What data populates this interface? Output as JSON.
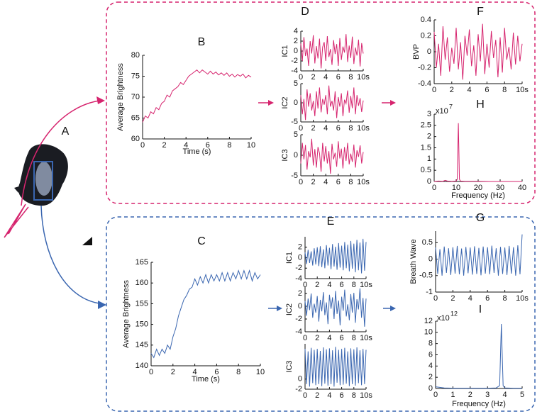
{
  "image_panel": {
    "label": "A"
  },
  "chart_data": [
    {
      "type": "line",
      "title": "B",
      "ylabel": "Average Brightness",
      "xlabel": "Time (s)",
      "color": "#d6246e",
      "xlim": [
        0,
        10
      ],
      "xticks": [
        0,
        2,
        4,
        6,
        8,
        10
      ],
      "ylim": [
        60,
        80
      ],
      "yticks": [
        60,
        65,
        70,
        75,
        80
      ],
      "x": [
        0,
        0.25,
        0.5,
        0.75,
        1,
        1.25,
        1.5,
        1.75,
        2,
        2.25,
        2.5,
        2.75,
        3,
        3.25,
        3.5,
        3.75,
        4,
        4.25,
        4.5,
        4.75,
        5,
        5.25,
        5.5,
        5.75,
        6,
        6.25,
        6.5,
        6.75,
        7,
        7.25,
        7.5,
        7.75,
        8,
        8.25,
        8.5,
        8.75,
        9,
        9.25,
        9.5,
        9.75,
        10
      ],
      "values": [
        64,
        65.5,
        65,
        66.5,
        66,
        67.5,
        67,
        68.5,
        69,
        70.5,
        70,
        71.5,
        72,
        72.5,
        73.5,
        73,
        74,
        75,
        75.5,
        76,
        76.5,
        75.8,
        76.5,
        76,
        75.5,
        76.2,
        75.5,
        76,
        75.3,
        75.8,
        75.2,
        75.8,
        75,
        75.5,
        74.8,
        75.4,
        75,
        75.5,
        74.6,
        75.2,
        74.8
      ]
    },
    {
      "type": "line",
      "title": "D",
      "ylabel": "IC1",
      "color": "#d6246e",
      "xlim": [
        0,
        10
      ],
      "xticks": [
        0,
        2,
        4,
        6,
        8,
        {
          "value": 10,
          "label": "10s"
        }
      ],
      "ylim": [
        -4,
        4
      ],
      "yticks": [
        -4,
        -2,
        0,
        2,
        4
      ],
      "x": [
        0,
        0.25,
        0.5,
        0.75,
        1,
        1.25,
        1.5,
        1.75,
        2,
        2.25,
        2.5,
        2.75,
        3,
        3.25,
        3.5,
        3.75,
        4,
        4.25,
        4.5,
        4.75,
        5,
        5.25,
        5.5,
        5.75,
        6,
        6.25,
        6.5,
        6.75,
        7,
        7.25,
        7.5,
        7.75,
        8,
        8.25,
        8.5,
        8.75,
        9,
        9.25,
        9.5,
        9.75,
        10
      ],
      "values": [
        1.5,
        -2,
        2.8,
        -1,
        0.5,
        -3,
        2,
        -0.5,
        3.2,
        -2.5,
        1,
        -1.5,
        2.5,
        -3.5,
        0.8,
        1.8,
        -2,
        3,
        -1.2,
        0.4,
        -2.8,
        2.2,
        -0.6,
        1.4,
        -3,
        2.6,
        -1.8,
        0.9,
        -0.3,
        3.4,
        -2.2,
        1.1,
        -1.4,
        2.9,
        -2.6,
        0.7,
        -0.9,
        2.3,
        -3.1,
        1.6,
        -0.5
      ]
    },
    {
      "type": "line",
      "ylabel": "IC2",
      "color": "#d6246e",
      "xlim": [
        0,
        10
      ],
      "xticks": [
        0,
        2,
        4,
        6,
        8,
        {
          "value": 10,
          "label": "10s"
        }
      ],
      "ylim": [
        -5,
        5
      ],
      "yticks": [
        -5,
        0,
        5
      ],
      "x": [
        0,
        0.25,
        0.5,
        0.75,
        1,
        1.25,
        1.5,
        1.75,
        2,
        2.25,
        2.5,
        2.75,
        3,
        3.25,
        3.5,
        3.75,
        4,
        4.25,
        4.5,
        4.75,
        5,
        5.25,
        5.5,
        5.75,
        6,
        6.25,
        6.5,
        6.75,
        7,
        7.25,
        7.5,
        7.75,
        8,
        8.25,
        8.5,
        8.75,
        9,
        9.25,
        9.5,
        9.75,
        10
      ],
      "values": [
        2,
        -3,
        1,
        -4.5,
        3.5,
        -1,
        2.5,
        -2,
        0.5,
        -3.5,
        3,
        -1.5,
        4,
        -2.5,
        1,
        -0.5,
        2,
        -3,
        4.5,
        -1,
        0.5,
        -2,
        3,
        -4,
        1.5,
        -1,
        2.5,
        -3.5,
        0.8,
        -0.2,
        3.2,
        -2.6,
        1.8,
        -1.4,
        4,
        -3,
        2,
        -0.8,
        1.2,
        -2.4,
        0.6
      ]
    },
    {
      "type": "line",
      "ylabel": "IC3",
      "color": "#d6246e",
      "xlim": [
        0,
        10
      ],
      "xticks": [
        0,
        2,
        4,
        6,
        8,
        {
          "value": 10,
          "label": "10s"
        }
      ],
      "ylim": [
        -5,
        5
      ],
      "yticks": [
        -5,
        0,
        5
      ],
      "x": [
        0,
        0.25,
        0.5,
        0.75,
        1,
        1.25,
        1.5,
        1.75,
        2,
        2.25,
        2.5,
        2.75,
        3,
        3.25,
        3.5,
        3.75,
        4,
        4.25,
        4.5,
        4.75,
        5,
        5.25,
        5.5,
        5.75,
        6,
        6.25,
        6.5,
        6.75,
        7,
        7.25,
        7.5,
        7.75,
        8,
        8.25,
        8.5,
        8.75,
        9,
        9.25,
        9.5,
        9.75,
        10
      ],
      "values": [
        -2,
        3,
        -1,
        2.5,
        -3.5,
        1,
        -0.5,
        4,
        -2.5,
        1.5,
        -3,
        2,
        0.5,
        -4,
        3,
        -1.5,
        2.2,
        -2,
        1,
        -4.5,
        2.8,
        -1,
        0.6,
        -2.8,
        3.4,
        -0.8,
        1.6,
        -3.2,
        2,
        -1.4,
        3,
        -2.2,
        0.4,
        -1.6,
        2.6,
        -3,
        1.2,
        -0.4,
        2.4,
        -2,
        0.8
      ]
    },
    {
      "type": "line",
      "title": "F",
      "ylabel": "BVP",
      "color": "#d6246e",
      "xlim": [
        0,
        10
      ],
      "xticks": [
        0,
        2,
        4,
        6,
        8,
        {
          "value": 10,
          "label": "10s"
        }
      ],
      "ylim": [
        -0.4,
        0.4
      ],
      "yticks": [
        -0.4,
        -0.2,
        0,
        0.2,
        0.4
      ],
      "x": [
        0,
        0.25,
        0.5,
        0.75,
        1,
        1.25,
        1.5,
        1.75,
        2,
        2.25,
        2.5,
        2.75,
        3,
        3.25,
        3.5,
        3.75,
        4,
        4.25,
        4.5,
        4.75,
        5,
        5.25,
        5.5,
        5.75,
        6,
        6.25,
        6.5,
        6.75,
        7,
        7.25,
        7.5,
        7.75,
        8,
        8.25,
        8.5,
        8.75,
        9,
        9.25,
        9.5,
        9.75,
        10
      ],
      "values": [
        0.25,
        -0.2,
        0.1,
        -0.3,
        0.32,
        -0.1,
        0.18,
        -0.25,
        0.05,
        -0.15,
        0.3,
        -0.22,
        0.12,
        -0.35,
        0.2,
        -0.05,
        0.28,
        -0.18,
        0.08,
        -0.3,
        0.22,
        -0.12,
        0.35,
        -0.28,
        0.1,
        -0.2,
        0.26,
        -0.08,
        0.15,
        -0.32,
        0.18,
        -0.26,
        0.3,
        -0.1,
        0.06,
        -0.22,
        0.24,
        -0.16,
        0.2,
        -0.12,
        0.1
      ]
    },
    {
      "type": "line",
      "title": "H",
      "xlabel": "Frequency (Hz)",
      "scale_label": "x10",
      "scale_exponent": "7",
      "color": "#d6246e",
      "xlim": [
        0,
        40
      ],
      "xticks": [
        0,
        10,
        20,
        30,
        40
      ],
      "ylim": [
        0,
        3
      ],
      "yticks": [
        0,
        0.5,
        1,
        1.5,
        2,
        2.5,
        3
      ],
      "x": [
        0,
        2,
        4,
        5,
        6,
        8,
        10,
        10.5,
        11,
        11.5,
        12,
        14,
        16,
        20,
        25,
        30,
        35,
        40
      ],
      "values": [
        0,
        0.02,
        0.01,
        0.05,
        0.02,
        0.01,
        0.02,
        0.1,
        2.6,
        0.1,
        0.02,
        0.01,
        0.01,
        0.01,
        0,
        0,
        0,
        0
      ]
    },
    {
      "type": "line",
      "title": "C",
      "ylabel": "Average Brightness",
      "xlabel": "Time (s)",
      "color": "#3a66b0",
      "xlim": [
        0,
        10
      ],
      "xticks": [
        0,
        2,
        4,
        6,
        8,
        10
      ],
      "ylim": [
        140,
        165
      ],
      "yticks": [
        140,
        145,
        150,
        155,
        160,
        165
      ],
      "x": [
        0,
        0.25,
        0.5,
        0.75,
        1,
        1.25,
        1.5,
        1.75,
        2,
        2.25,
        2.5,
        2.75,
        3,
        3.25,
        3.5,
        3.75,
        4,
        4.25,
        4.5,
        4.75,
        5,
        5.25,
        5.5,
        5.75,
        6,
        6.25,
        6.5,
        6.75,
        7,
        7.25,
        7.5,
        7.75,
        8,
        8.25,
        8.5,
        8.75,
        9,
        9.25,
        9.5,
        9.75,
        10
      ],
      "values": [
        143,
        142,
        144,
        142.5,
        144,
        143,
        145,
        144,
        147,
        149,
        152,
        154,
        156,
        157,
        158.5,
        159,
        161,
        159.5,
        161.5,
        160,
        162,
        160,
        162,
        160.5,
        162,
        160.5,
        162.5,
        160.5,
        162.5,
        160.5,
        162.5,
        161,
        163,
        161,
        163,
        161,
        163,
        160.5,
        162.5,
        161,
        162
      ]
    },
    {
      "type": "line",
      "title": "E",
      "ylabel": "IC1",
      "color": "#3a66b0",
      "xlim": [
        0,
        10
      ],
      "xticks": [
        0,
        2,
        4,
        6,
        8,
        {
          "value": 10,
          "label": "10s"
        }
      ],
      "ylim": [
        -4,
        4
      ],
      "yticks": [
        -4,
        -2,
        0,
        2
      ],
      "x": [
        0,
        0.25,
        0.5,
        0.75,
        1,
        1.25,
        1.5,
        1.75,
        2,
        2.25,
        2.5,
        2.75,
        3,
        3.25,
        3.5,
        3.75,
        4,
        4.25,
        4.5,
        4.75,
        5,
        5.25,
        5.5,
        5.75,
        6,
        6.25,
        6.5,
        6.75,
        7,
        7.25,
        7.5,
        7.75,
        8,
        8.25,
        8.5,
        8.75,
        9,
        9.25,
        9.5,
        9.75,
        10
      ],
      "values": [
        1,
        -1.2,
        1.5,
        -1,
        1.2,
        -1.5,
        1.8,
        -1.3,
        2,
        -1.6,
        2.2,
        -1.8,
        1.6,
        -2,
        2.4,
        -1.5,
        1.9,
        -2.2,
        2.6,
        -1.7,
        2.1,
        -2.3,
        2.8,
        -1.9,
        2.3,
        -2.4,
        3,
        -2,
        2.5,
        -2.6,
        3.2,
        -2.1,
        2.7,
        -2.8,
        3.4,
        -2.4,
        2.9,
        -3,
        3.6,
        -2.5,
        3
      ]
    },
    {
      "type": "line",
      "ylabel": "IC2",
      "color": "#3a66b0",
      "xlim": [
        0,
        10
      ],
      "xticks": [
        0,
        2,
        4,
        6,
        8,
        {
          "value": 10,
          "label": "10s"
        }
      ],
      "ylim": [
        -4,
        3
      ],
      "yticks": [
        -4,
        -2,
        0,
        2
      ],
      "x": [
        0,
        0.25,
        0.5,
        0.75,
        1,
        1.25,
        1.5,
        1.75,
        2,
        2.25,
        2.5,
        2.75,
        3,
        3.25,
        3.5,
        3.75,
        4,
        4.25,
        4.5,
        4.75,
        5,
        5.25,
        5.5,
        5.75,
        6,
        6.25,
        6.5,
        6.75,
        7,
        7.25,
        7.5,
        7.75,
        8,
        8.25,
        8.5,
        8.75,
        9,
        9.25,
        9.5,
        9.75,
        10
      ],
      "values": [
        0.8,
        -1.5,
        1.2,
        -0.6,
        2,
        -1.8,
        0.4,
        -1,
        1.6,
        -2.4,
        1,
        -0.8,
        2.2,
        -1.4,
        0.6,
        -2.8,
        1.8,
        -0.4,
        1.4,
        -2,
        2.4,
        -1.2,
        0.9,
        -3,
        1.5,
        -0.7,
        2.6,
        -1.6,
        0.3,
        -2.2,
        1.9,
        -1,
        2.1,
        -2.6,
        1.1,
        -0.5,
        2.8,
        -1.8,
        1.3,
        -3.2,
        1.2
      ]
    },
    {
      "type": "line",
      "ylabel": "IC3",
      "color": "#3a66b0",
      "xlim": [
        0,
        10
      ],
      "xticks": [
        0,
        2,
        4,
        6,
        8,
        {
          "value": 10,
          "label": "10s"
        }
      ],
      "ylim": [
        -2,
        7
      ],
      "yticks": [
        -2,
        0
      ],
      "x": [
        0,
        0.25,
        0.5,
        0.75,
        1,
        1.25,
        1.5,
        1.75,
        2,
        2.25,
        2.5,
        2.75,
        3,
        3.25,
        3.5,
        3.75,
        4,
        4.25,
        4.5,
        4.75,
        5,
        5.25,
        5.5,
        5.75,
        6,
        6.25,
        6.5,
        6.75,
        7,
        7.25,
        7.5,
        7.75,
        8,
        8.25,
        8.5,
        8.75,
        9,
        9.25,
        9.5,
        9.75,
        10
      ],
      "values": [
        6,
        -1,
        5.5,
        -1.5,
        6.2,
        -0.8,
        5.8,
        -1.2,
        6,
        -1,
        5.6,
        -1.4,
        6.3,
        -0.9,
        5.9,
        -1.3,
        6.1,
        -1,
        5.7,
        -1.5,
        6.4,
        -0.7,
        5.8,
        -1.2,
        6,
        -1.1,
        6.2,
        -0.9,
        5.5,
        -1.4,
        6.1,
        -1,
        5.9,
        -1.3,
        6.3,
        -0.8,
        5.7,
        -1.2,
        6,
        -1,
        5.8
      ]
    },
    {
      "type": "line",
      "title": "G",
      "ylabel": "Breath Wave",
      "color": "#3a66b0",
      "xlim": [
        0,
        10
      ],
      "xticks": [
        0,
        2,
        4,
        6,
        8,
        {
          "value": 10,
          "label": "10s"
        }
      ],
      "ylim": [
        -1,
        0.85
      ],
      "yticks": [
        -1,
        -0.5,
        0,
        0.5
      ],
      "x": [
        0,
        0.25,
        0.5,
        0.75,
        1,
        1.25,
        1.5,
        1.75,
        2,
        2.25,
        2.5,
        2.75,
        3,
        3.25,
        3.5,
        3.75,
        4,
        4.25,
        4.5,
        4.75,
        5,
        5.25,
        5.5,
        5.75,
        6,
        6.25,
        6.5,
        6.75,
        7,
        7.25,
        7.5,
        7.75,
        8,
        8.25,
        8.5,
        8.75,
        9,
        9.25,
        9.5,
        9.75,
        10
      ],
      "values": [
        0.35,
        -0.45,
        0.3,
        -0.5,
        0.38,
        -0.42,
        0.33,
        -0.48,
        0.36,
        -0.44,
        0.4,
        -0.46,
        0.32,
        -0.5,
        0.37,
        -0.43,
        0.35,
        -0.47,
        0.39,
        -0.45,
        0.34,
        -0.49,
        0.38,
        -0.44,
        0.36,
        -0.46,
        0.41,
        -0.42,
        0.33,
        -0.5,
        0.37,
        -0.45,
        0.35,
        -0.48,
        0.4,
        -0.44,
        0.36,
        -0.5,
        0.42,
        -0.46,
        0.75
      ]
    },
    {
      "type": "line",
      "title": "I",
      "xlabel": "Frequency (Hz)",
      "scale_label": "x10",
      "scale_exponent": "12",
      "color": "#3a66b0",
      "xlim": [
        0,
        5
      ],
      "xticks": [
        0,
        1,
        2,
        3,
        4,
        5
      ],
      "ylim": [
        0,
        12
      ],
      "yticks": [
        0,
        2,
        4,
        6,
        8,
        10,
        12
      ],
      "x": [
        0,
        0.5,
        1,
        1.5,
        2,
        2.5,
        3,
        3.5,
        3.7,
        3.8,
        3.9,
        4,
        4.5,
        5
      ],
      "values": [
        0.3,
        0.1,
        0.05,
        0.05,
        0.05,
        0.05,
        0.05,
        0.1,
        0.5,
        11.5,
        0.5,
        0.1,
        0.05,
        0.05
      ]
    }
  ]
}
